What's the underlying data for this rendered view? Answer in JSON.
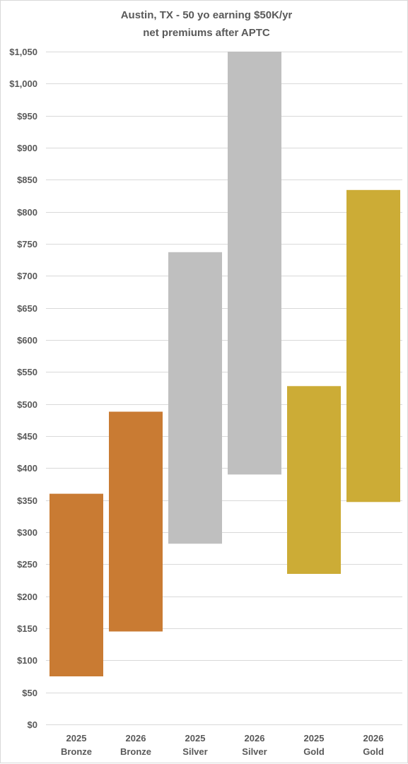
{
  "chart_data": {
    "type": "bar",
    "subtype": "floating-range",
    "title": [
      "Austin, TX - 50 yo earning $50K/yr",
      "net premiums after APTC"
    ],
    "categories": [
      [
        "2025",
        "Bronze"
      ],
      [
        "2026",
        "Bronze"
      ],
      [
        "2025",
        "Silver"
      ],
      [
        "2026",
        "Silver"
      ],
      [
        "2025",
        "Gold"
      ],
      [
        "2026",
        "Gold"
      ]
    ],
    "ranges": [
      {
        "low": 75,
        "high": 360
      },
      {
        "low": 145,
        "high": 488
      },
      {
        "low": 282,
        "high": 737
      },
      {
        "low": 390,
        "high": 1050
      },
      {
        "low": 235,
        "high": 528
      },
      {
        "low": 347,
        "high": 834
      }
    ],
    "ylim": [
      0,
      1050
    ],
    "y_tick_step": 50,
    "y_tick_labels": [
      "$0",
      "$50",
      "$100",
      "$150",
      "$200",
      "$250",
      "$300",
      "$350",
      "$400",
      "$450",
      "$500",
      "$550",
      "$600",
      "$650",
      "$700",
      "$750",
      "$800",
      "$850",
      "$900",
      "$950",
      "$1,000",
      "$1,050"
    ],
    "xlabel": "",
    "ylabel": "",
    "grid": true,
    "legend": "none"
  },
  "colors": {
    "bronze": "#c97b33",
    "silver": "#bfbfbf",
    "gold": "#ccac36",
    "gridline": "#d9d9d9",
    "text": "#595959"
  },
  "bar_color_keys": [
    "bronze",
    "bronze",
    "silver",
    "silver",
    "gold",
    "gold"
  ]
}
